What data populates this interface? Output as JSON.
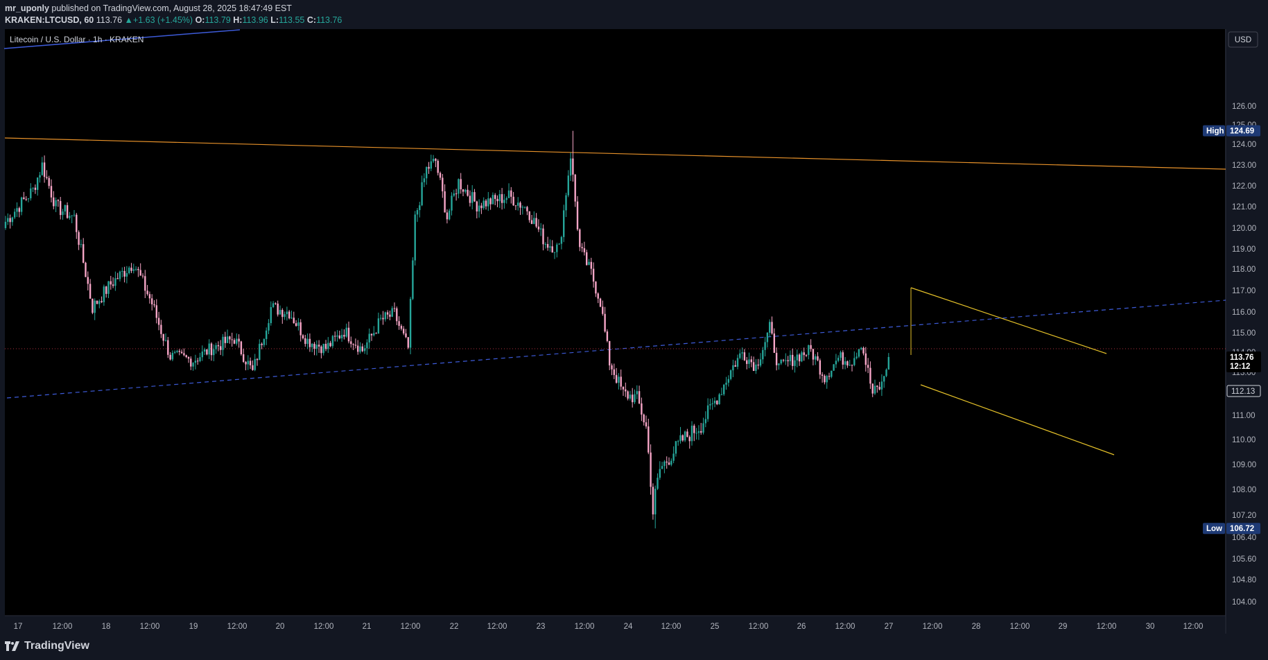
{
  "header": {
    "author": "mr_uponly",
    "published_text": "published on TradingView.com, August 28, 2025 18:47:49 EST",
    "symbol": "KRAKEN:LTCUSD, 60",
    "last": "113.76",
    "change": "+1.63 (+1.45%)",
    "o_label": "O:",
    "o_value": "113.79",
    "h_label": "H:",
    "h_value": "113.96",
    "l_label": "L:",
    "l_value": "113.55",
    "c_label": "C:",
    "c_value": "113.76"
  },
  "footer": {
    "brand": "TradingView"
  },
  "chart_data": {
    "type": "candlestick",
    "title": "Litecoin / U.S. Dollar · 1h · KRAKEN",
    "currency": "USD",
    "x_ticks": [
      "17",
      "12:00",
      "18",
      "12:00",
      "19",
      "12:00",
      "20",
      "12:00",
      "21",
      "12:00",
      "22",
      "12:00",
      "23",
      "12:00",
      "24",
      "12:00",
      "25",
      "12:00",
      "26",
      "12:00",
      "27",
      "12:00",
      "28",
      "12:00",
      "29",
      "12:00",
      "30",
      "12:00"
    ],
    "y_ticks": [
      "126.00",
      "125.00",
      "124.00",
      "123.00",
      "122.00",
      "121.00",
      "120.00",
      "119.00",
      "118.00",
      "117.00",
      "116.00",
      "115.00",
      "114.00",
      "113.00",
      "111.00",
      "110.00",
      "109.00",
      "108.00",
      "107.20",
      "106.40",
      "105.60",
      "104.80",
      "104.00"
    ],
    "high": {
      "label": "High",
      "value": "124.69"
    },
    "low": {
      "label": "Low",
      "value": "106.72"
    },
    "current": {
      "value": "113.76",
      "countdown": "12:12"
    },
    "marker": {
      "value": "112.13"
    },
    "colors": {
      "up": "#26a69a",
      "down": "#f7a6c7",
      "orange_line": "#e8922a",
      "blue_dashed": "#3d5bd9",
      "channel": "#e6c229",
      "price_line": "#b2313f"
    },
    "anchors": [
      {
        "t": 0,
        "p": 120.3
      },
      {
        "t": 12,
        "p": 121.8
      },
      {
        "t": 16,
        "p": 123.0
      },
      {
        "t": 22,
        "p": 121.0
      },
      {
        "t": 30,
        "p": 120.5
      },
      {
        "t": 38,
        "p": 116.2
      },
      {
        "t": 46,
        "p": 117.3
      },
      {
        "t": 56,
        "p": 118.3
      },
      {
        "t": 64,
        "p": 116.4
      },
      {
        "t": 72,
        "p": 113.8
      },
      {
        "t": 82,
        "p": 113.6
      },
      {
        "t": 90,
        "p": 114.2
      },
      {
        "t": 100,
        "p": 114.7
      },
      {
        "t": 108,
        "p": 113.0
      },
      {
        "t": 116,
        "p": 116.2
      },
      {
        "t": 124,
        "p": 116.0
      },
      {
        "t": 132,
        "p": 114.6
      },
      {
        "t": 140,
        "p": 114.2
      },
      {
        "t": 148,
        "p": 115.1
      },
      {
        "t": 156,
        "p": 114.1
      },
      {
        "t": 164,
        "p": 115.6
      },
      {
        "t": 170,
        "p": 115.9
      },
      {
        "t": 176,
        "p": 114.2
      },
      {
        "t": 179,
        "p": 120.4
      },
      {
        "t": 184,
        "p": 122.8
      },
      {
        "t": 188,
        "p": 123.2
      },
      {
        "t": 193,
        "p": 120.5
      },
      {
        "t": 198,
        "p": 122.2
      },
      {
        "t": 206,
        "p": 121.1
      },
      {
        "t": 214,
        "p": 121.3
      },
      {
        "t": 220,
        "p": 121.5
      },
      {
        "t": 228,
        "p": 120.9
      },
      {
        "t": 236,
        "p": 119.3
      },
      {
        "t": 242,
        "p": 119.0
      },
      {
        "t": 247,
        "p": 123.5
      },
      {
        "t": 251,
        "p": 119.0
      },
      {
        "t": 256,
        "p": 117.8
      },
      {
        "t": 260,
        "p": 116.5
      },
      {
        "t": 264,
        "p": 113.5
      },
      {
        "t": 270,
        "p": 112.0
      },
      {
        "t": 276,
        "p": 111.8
      },
      {
        "t": 280,
        "p": 110.5
      },
      {
        "t": 283,
        "p": 107.3
      },
      {
        "t": 286,
        "p": 108.8
      },
      {
        "t": 296,
        "p": 110.0
      },
      {
        "t": 304,
        "p": 110.6
      },
      {
        "t": 312,
        "p": 112.0
      },
      {
        "t": 318,
        "p": 113.3
      },
      {
        "t": 322,
        "p": 114.0
      },
      {
        "t": 328,
        "p": 113.3
      },
      {
        "t": 334,
        "p": 115.2
      },
      {
        "t": 338,
        "p": 113.2
      },
      {
        "t": 346,
        "p": 113.8
      },
      {
        "t": 352,
        "p": 114.1
      },
      {
        "t": 358,
        "p": 112.8
      },
      {
        "t": 364,
        "p": 113.7
      },
      {
        "t": 370,
        "p": 113.6
      },
      {
        "t": 374,
        "p": 114.5
      },
      {
        "t": 379,
        "p": 112.0
      },
      {
        "t": 383,
        "p": 112.4
      },
      {
        "t": 386,
        "p": 113.76
      }
    ]
  }
}
